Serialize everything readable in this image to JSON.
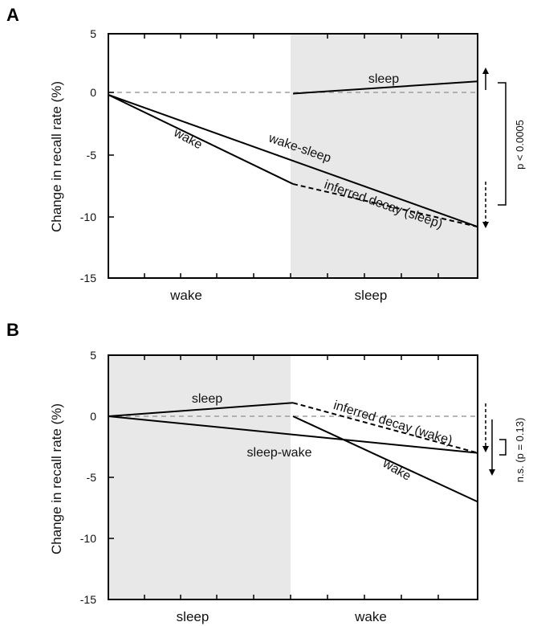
{
  "chart_data": [
    {
      "panel": "A",
      "type": "line",
      "ylabel": "Change in recall rate  (%)",
      "ylim": [
        -15,
        5
      ],
      "yticks": [
        "5",
        "0",
        "-5",
        "-10",
        "-15"
      ],
      "categories": [
        "wake",
        "sleep"
      ],
      "shaded_period": "sleep",
      "series": [
        {
          "name": "wake",
          "x": [
            0,
            1
          ],
          "y": [
            0,
            -7.3
          ],
          "style": "solid"
        },
        {
          "name": "wake-sleep",
          "x": [
            0,
            2
          ],
          "y": [
            0,
            -10.8
          ],
          "style": "solid"
        },
        {
          "name": "sleep",
          "x": [
            1,
            2
          ],
          "y": [
            0.1,
            1.1
          ],
          "style": "solid"
        },
        {
          "name": "inferred decay (sleep)",
          "x": [
            1,
            2
          ],
          "y": [
            -7.3,
            -10.8
          ],
          "style": "dashed"
        }
      ],
      "reference_line": {
        "y": 0,
        "style": "dashed",
        "color": "#9e9e9e"
      },
      "significance": {
        "label": "p < 0.0005",
        "from": 1.1,
        "to": -10.8
      }
    },
    {
      "panel": "B",
      "type": "line",
      "ylabel": "Change in recall rate  (%)",
      "ylim": [
        -15,
        5
      ],
      "yticks": [
        "5",
        "0",
        "-5",
        "-10",
        "-15"
      ],
      "categories": [
        "sleep",
        "wake"
      ],
      "shaded_period": "sleep",
      "series": [
        {
          "name": "sleep",
          "x": [
            0,
            1
          ],
          "y": [
            0,
            1.1
          ],
          "style": "solid"
        },
        {
          "name": "sleep-wake",
          "x": [
            0,
            2
          ],
          "y": [
            0,
            -3.0
          ],
          "style": "solid"
        },
        {
          "name": "wake",
          "x": [
            1,
            2
          ],
          "y": [
            0,
            -7.0
          ],
          "style": "solid"
        },
        {
          "name": "inferred decay (wake)",
          "x": [
            1,
            2
          ],
          "y": [
            1.1,
            -3.0
          ],
          "style": "dashed"
        }
      ],
      "reference_line": {
        "y": 0,
        "style": "dashed",
        "color": "#9e9e9e"
      },
      "significance": {
        "label": "n.s. (p = 0.13)",
        "from": -2.2,
        "to": -3.0
      }
    }
  ],
  "colors": {
    "shade": "#e8e8e8",
    "line": "#000000",
    "reference": "#9e9e9e"
  }
}
